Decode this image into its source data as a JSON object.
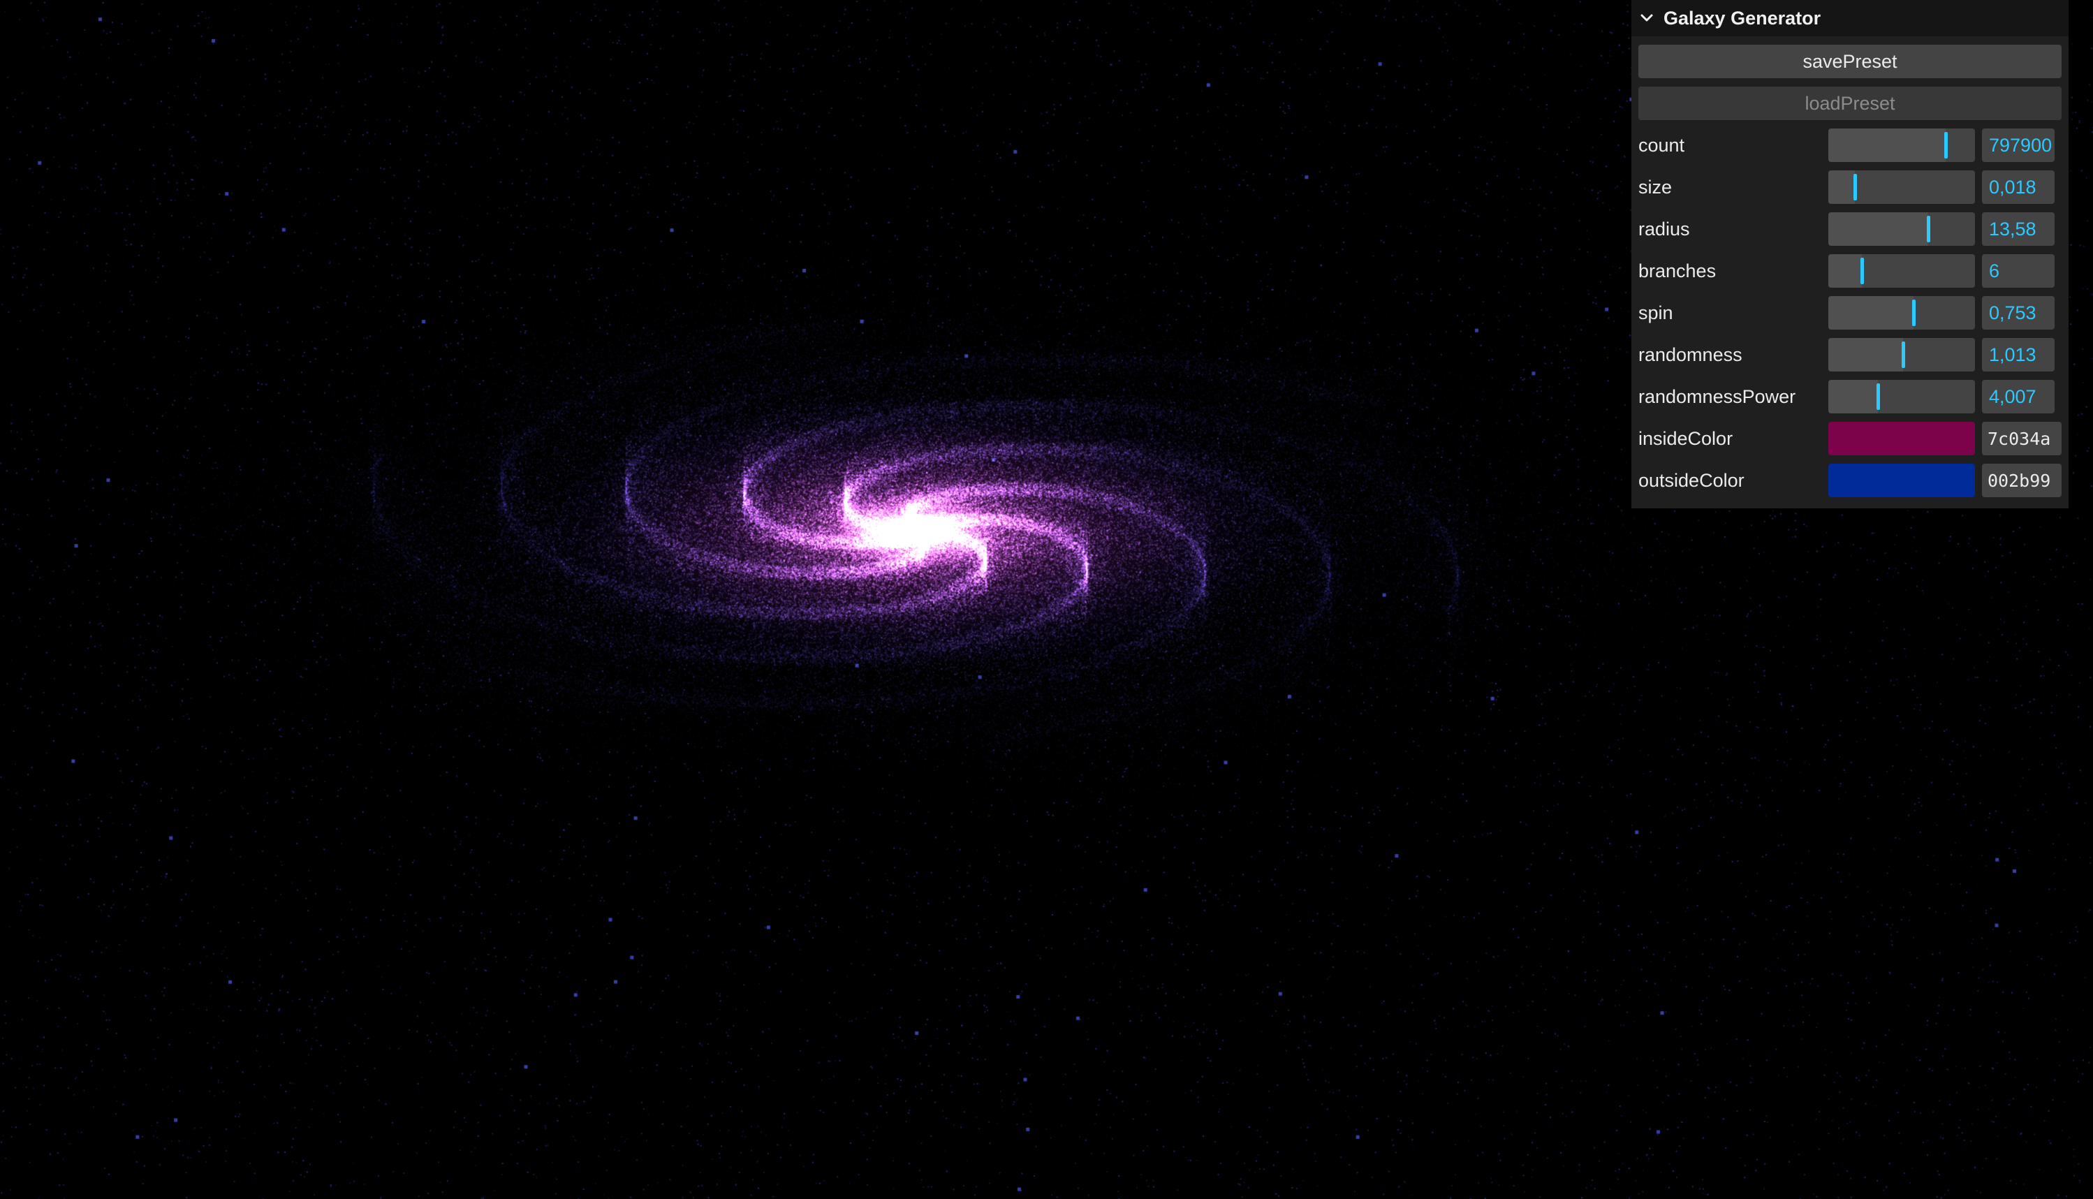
{
  "panel": {
    "title": "Galaxy Generator",
    "buttons": {
      "save": "savePreset",
      "load": "loadPreset"
    },
    "sliders": [
      {
        "label": "count",
        "value": "797900",
        "fraction": 0.8
      },
      {
        "label": "size",
        "value": "0,018",
        "fraction": 0.18
      },
      {
        "label": "radius",
        "value": "13,58",
        "fraction": 0.68
      },
      {
        "label": "branches",
        "value": "6",
        "fraction": 0.23
      },
      {
        "label": "spin",
        "value": "0,753",
        "fraction": 0.58
      },
      {
        "label": "randomness",
        "value": "1,013",
        "fraction": 0.51
      },
      {
        "label": "randomnessPower",
        "value": "4,007",
        "fraction": 0.34
      }
    ],
    "colors": [
      {
        "label": "insideColor",
        "value": "7c034a",
        "hex": "#7c034a"
      },
      {
        "label": "outsideColor",
        "value": "002b99",
        "hex": "#002b99"
      }
    ]
  },
  "colors": {
    "accent": "#2cc9ff",
    "background": "#000000",
    "core": "#ff7ff2"
  },
  "icons": {
    "collapse": "chevron-down-icon"
  }
}
